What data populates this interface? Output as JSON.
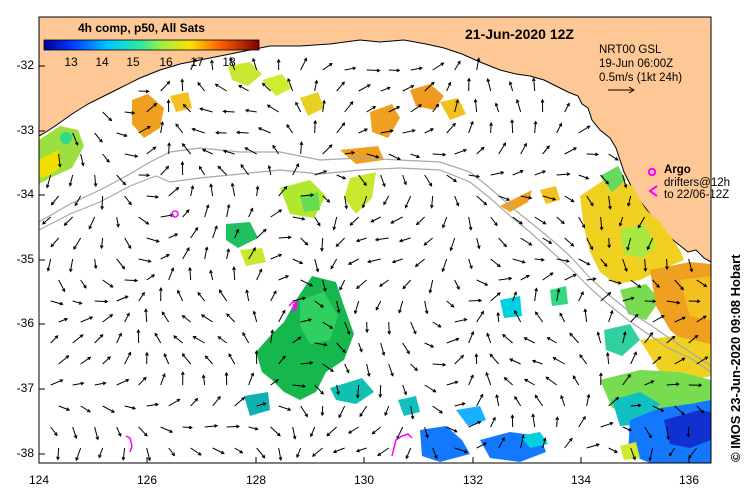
{
  "product": {
    "title": "4h comp, p50, All Sats",
    "date": "21-Jun-2020 12Z",
    "credit": "©  IMOS 23-Jun-2020 09:08 Hobart"
  },
  "colorbar": {
    "ticks": [
      "13",
      "14",
      "15",
      "16",
      "17",
      "18"
    ]
  },
  "velocity_legend": {
    "source": "NRT00 GSL",
    "date": "19-Jun 06:00Z",
    "scale": "0.5m/s (1kt 24h)"
  },
  "argo_legend": {
    "label": "Argo",
    "drifters": "drifters@12h",
    "drifters_time": "to 22/06-12Z"
  },
  "axes": {
    "x_ticks": [
      "124",
      "126",
      "128",
      "130",
      "132",
      "134",
      "136"
    ],
    "y_ticks": [
      "-32",
      "-33",
      "-34",
      "-35",
      "-36",
      "-37",
      "-38"
    ]
  },
  "colors": {
    "land": "#fdc896",
    "argo": "#ff00ff",
    "contour": "#a8a8a8"
  }
}
